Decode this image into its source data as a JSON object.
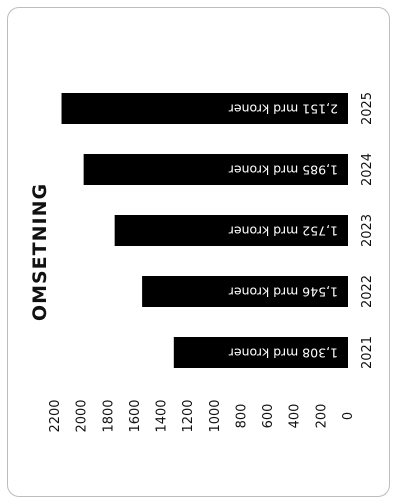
{
  "chart_data": {
    "type": "bar",
    "orientation": "horizontal",
    "title": "OMSETNING",
    "categories": [
      "2021",
      "2022",
      "2023",
      "2024",
      "2025"
    ],
    "values": [
      1308,
      1546,
      1752,
      1985,
      2151
    ],
    "data_labels": [
      "1,308 mrd kroner",
      "1,546 mrd kroner",
      "1,752 mrd kroner",
      "1,985 mrd kroner",
      "2,151 mrd kroner"
    ],
    "xlim": [
      0,
      2200
    ],
    "xticks": [
      "0",
      "200",
      "400",
      "600",
      "800",
      "1000",
      "1200",
      "1400",
      "1600",
      "1800",
      "2000",
      "2200"
    ],
    "grid": false,
    "legend": "none",
    "colors": {
      "bar": "#000000",
      "label": "#ffffff",
      "text": "#111111",
      "border": "#bdbdbd"
    }
  }
}
